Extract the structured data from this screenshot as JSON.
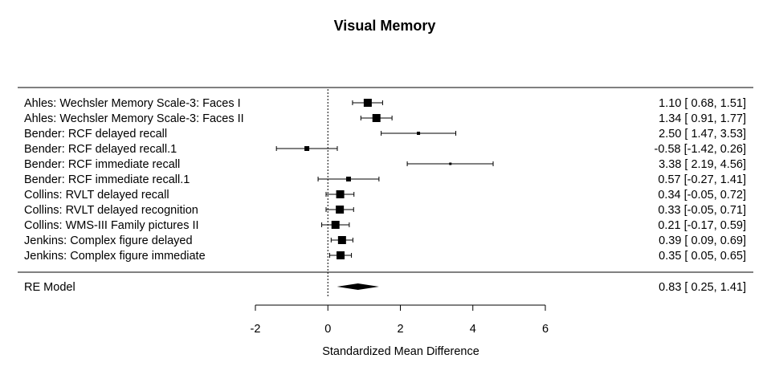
{
  "chart_data": {
    "type": "forest",
    "title": "Visual Memory",
    "xlabel": "Standardized Mean Difference",
    "xlim": [
      -2,
      6
    ],
    "ticks": [
      -2,
      0,
      2,
      4,
      6
    ],
    "tick_labels": [
      "-2",
      "0",
      "2",
      "4",
      "6"
    ],
    "reference_line": 0,
    "studies": [
      {
        "label": "Ahles: Wechsler Memory Scale-3: Faces I",
        "est": 1.1,
        "lo": 0.68,
        "hi": 1.51,
        "text": "1.10 [ 0.68, 1.51]",
        "size": 10
      },
      {
        "label": "Ahles: Wechsler Memory Scale-3: Faces II",
        "est": 1.34,
        "lo": 0.91,
        "hi": 1.77,
        "text": "1.34 [ 0.91, 1.77]",
        "size": 10
      },
      {
        "label": "Bender: RCF delayed recall",
        "est": 2.5,
        "lo": 1.47,
        "hi": 3.53,
        "text": "2.50 [ 1.47, 3.53]",
        "size": 4
      },
      {
        "label": "Bender: RCF delayed recall.1",
        "est": -0.58,
        "lo": -1.42,
        "hi": 0.26,
        "text": "-0.58 [-1.42, 0.26]",
        "size": 6
      },
      {
        "label": "Bender: RCF immediate recall",
        "est": 3.38,
        "lo": 2.19,
        "hi": 4.56,
        "text": "3.38 [ 2.19, 4.56]",
        "size": 3
      },
      {
        "label": "Bender: RCF immediate recall.1",
        "est": 0.57,
        "lo": -0.27,
        "hi": 1.41,
        "text": "0.57 [-0.27, 1.41]",
        "size": 6
      },
      {
        "label": "Collins: RVLT delayed recall",
        "est": 0.34,
        "lo": -0.05,
        "hi": 0.72,
        "text": "0.34 [-0.05, 0.72]",
        "size": 10
      },
      {
        "label": "Collins: RVLT delayed recognition",
        "est": 0.33,
        "lo": -0.05,
        "hi": 0.71,
        "text": "0.33 [-0.05, 0.71]",
        "size": 10
      },
      {
        "label": "Collins: WMS-III Family pictures II",
        "est": 0.21,
        "lo": -0.17,
        "hi": 0.59,
        "text": "0.21 [-0.17, 0.59]",
        "size": 10
      },
      {
        "label": "Jenkins: Complex figure delayed",
        "est": 0.39,
        "lo": 0.09,
        "hi": 0.69,
        "text": "0.39 [ 0.09, 0.69]",
        "size": 10
      },
      {
        "label": "Jenkins: Complex figure immediate",
        "est": 0.35,
        "lo": 0.05,
        "hi": 0.65,
        "text": "0.35 [ 0.05, 0.65]",
        "size": 10
      }
    ],
    "summary": {
      "label": "RE Model",
      "est": 0.83,
      "lo": 0.25,
      "hi": 1.41,
      "text": "0.83 [ 0.25, 1.41]"
    }
  }
}
